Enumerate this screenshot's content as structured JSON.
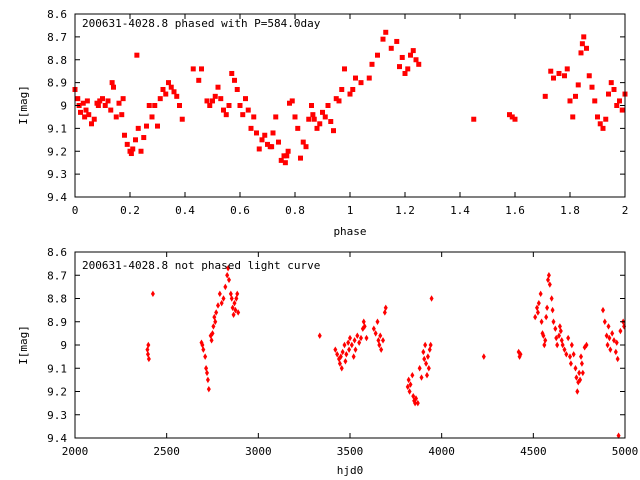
{
  "chart_data": [
    {
      "type": "scatter",
      "title": "200631-4028.8 phased with P=584.0day",
      "xlabel": "phase",
      "ylabel": "I[mag]",
      "xlim": [
        0,
        2
      ],
      "ylim": [
        9.4,
        8.6
      ],
      "y_inverted": true,
      "grid": false,
      "marker": "square",
      "color": "#ff0000",
      "xticks": [
        0,
        0.2,
        0.4,
        0.6,
        0.8,
        1,
        1.2,
        1.4,
        1.6,
        1.8,
        2
      ],
      "xtick_labels": [
        "0",
        "0.2",
        "0.4",
        "0.6",
        "0.8",
        "1",
        "1.2",
        "1.4",
        "1.6",
        "1.8",
        "2"
      ],
      "yticks": [
        8.6,
        8.7,
        8.8,
        8.9,
        9.0,
        9.1,
        9.2,
        9.3,
        9.4
      ],
      "ytick_labels": [
        "8.6",
        "8.7",
        "8.8",
        "8.9",
        "9",
        "9.1",
        "9.2",
        "9.3",
        "9.4"
      ],
      "points": [
        [
          0.0,
          8.93
        ],
        [
          0.01,
          8.97
        ],
        [
          0.015,
          9.0
        ],
        [
          0.02,
          9.03
        ],
        [
          0.03,
          8.99
        ],
        [
          0.035,
          9.05
        ],
        [
          0.04,
          9.02
        ],
        [
          0.045,
          8.98
        ],
        [
          0.05,
          9.04
        ],
        [
          0.06,
          9.08
        ],
        [
          0.07,
          9.06
        ],
        [
          0.08,
          8.99
        ],
        [
          0.085,
          9.0
        ],
        [
          0.09,
          8.98
        ],
        [
          0.1,
          8.97
        ],
        [
          0.11,
          9.0
        ],
        [
          0.12,
          8.98
        ],
        [
          0.13,
          9.02
        ],
        [
          0.135,
          8.9
        ],
        [
          0.14,
          8.92
        ],
        [
          0.15,
          9.05
        ],
        [
          0.16,
          8.99
        ],
        [
          0.17,
          9.04
        ],
        [
          0.175,
          8.97
        ],
        [
          0.18,
          9.13
        ],
        [
          0.19,
          9.17
        ],
        [
          0.2,
          9.2
        ],
        [
          0.205,
          9.21
        ],
        [
          0.21,
          9.19
        ],
        [
          0.22,
          9.15
        ],
        [
          0.225,
          8.78
        ],
        [
          0.23,
          9.1
        ],
        [
          0.24,
          9.2
        ],
        [
          0.25,
          9.14
        ],
        [
          0.26,
          9.09
        ],
        [
          0.27,
          9.0
        ],
        [
          0.28,
          9.05
        ],
        [
          0.29,
          9.0
        ],
        [
          0.3,
          9.09
        ],
        [
          0.31,
          8.97
        ],
        [
          0.32,
          8.93
        ],
        [
          0.33,
          8.95
        ],
        [
          0.34,
          8.9
        ],
        [
          0.35,
          8.92
        ],
        [
          0.36,
          8.94
        ],
        [
          0.37,
          8.96
        ],
        [
          0.38,
          9.0
        ],
        [
          0.39,
          9.06
        ],
        [
          0.43,
          8.84
        ],
        [
          0.45,
          8.89
        ],
        [
          0.46,
          8.84
        ],
        [
          0.48,
          8.98
        ],
        [
          0.49,
          9.0
        ],
        [
          0.5,
          8.98
        ],
        [
          0.51,
          8.96
        ],
        [
          0.52,
          8.92
        ],
        [
          0.53,
          8.97
        ],
        [
          0.54,
          9.02
        ],
        [
          0.55,
          9.04
        ],
        [
          0.56,
          9.0
        ],
        [
          0.57,
          8.86
        ],
        [
          0.58,
          8.89
        ],
        [
          0.59,
          8.93
        ],
        [
          0.6,
          9.0
        ],
        [
          0.61,
          9.04
        ],
        [
          0.62,
          8.97
        ],
        [
          0.63,
          9.02
        ],
        [
          0.64,
          9.1
        ],
        [
          0.65,
          9.05
        ],
        [
          0.66,
          9.12
        ],
        [
          0.67,
          9.19
        ],
        [
          0.68,
          9.15
        ],
        [
          0.69,
          9.13
        ],
        [
          0.7,
          9.17
        ],
        [
          0.71,
          9.18
        ],
        [
          0.715,
          9.18
        ],
        [
          0.72,
          9.12
        ],
        [
          0.73,
          9.05
        ],
        [
          0.74,
          9.16
        ],
        [
          0.75,
          9.24
        ],
        [
          0.76,
          9.22
        ],
        [
          0.765,
          9.25
        ],
        [
          0.77,
          9.22
        ],
        [
          0.775,
          9.2
        ],
        [
          0.78,
          8.99
        ],
        [
          0.79,
          8.98
        ],
        [
          0.8,
          9.05
        ],
        [
          0.81,
          9.1
        ],
        [
          0.82,
          9.23
        ],
        [
          0.83,
          9.16
        ],
        [
          0.84,
          9.18
        ],
        [
          0.85,
          9.06
        ],
        [
          0.86,
          9.0
        ],
        [
          0.865,
          9.04
        ],
        [
          0.87,
          9.06
        ],
        [
          0.88,
          9.1
        ],
        [
          0.89,
          9.08
        ],
        [
          0.9,
          9.03
        ],
        [
          0.91,
          9.05
        ],
        [
          0.92,
          9.0
        ],
        [
          0.93,
          9.07
        ],
        [
          0.94,
          9.11
        ],
        [
          0.95,
          8.97
        ],
        [
          0.96,
          8.98
        ],
        [
          0.97,
          8.93
        ],
        [
          0.98,
          8.84
        ],
        [
          1.0,
          8.95
        ],
        [
          1.01,
          8.93
        ],
        [
          1.02,
          8.88
        ],
        [
          1.04,
          8.9
        ],
        [
          1.07,
          8.88
        ],
        [
          1.08,
          8.82
        ],
        [
          1.1,
          8.78
        ],
        [
          1.12,
          8.71
        ],
        [
          1.13,
          8.68
        ],
        [
          1.15,
          8.75
        ],
        [
          1.17,
          8.72
        ],
        [
          1.18,
          8.83
        ],
        [
          1.19,
          8.79
        ],
        [
          1.2,
          8.86
        ],
        [
          1.21,
          8.84
        ],
        [
          1.22,
          8.78
        ],
        [
          1.23,
          8.76
        ],
        [
          1.24,
          8.8
        ],
        [
          1.25,
          8.82
        ],
        [
          1.45,
          9.06
        ],
        [
          1.58,
          9.04
        ],
        [
          1.59,
          9.05
        ],
        [
          1.6,
          9.06
        ],
        [
          1.71,
          8.96
        ],
        [
          1.73,
          8.85
        ],
        [
          1.74,
          8.88
        ],
        [
          1.76,
          8.86
        ],
        [
          1.78,
          8.87
        ],
        [
          1.79,
          8.84
        ],
        [
          1.8,
          8.98
        ],
        [
          1.81,
          9.05
        ],
        [
          1.82,
          8.96
        ],
        [
          1.83,
          8.91
        ],
        [
          1.84,
          8.77
        ],
        [
          1.845,
          8.73
        ],
        [
          1.85,
          8.7
        ],
        [
          1.86,
          8.75
        ],
        [
          1.87,
          8.87
        ],
        [
          1.88,
          8.92
        ],
        [
          1.89,
          8.98
        ],
        [
          1.9,
          9.05
        ],
        [
          1.91,
          9.08
        ],
        [
          1.92,
          9.1
        ],
        [
          1.93,
          9.06
        ],
        [
          1.94,
          8.95
        ],
        [
          1.95,
          8.9
        ],
        [
          1.96,
          8.93
        ],
        [
          1.97,
          9.0
        ],
        [
          1.98,
          8.98
        ],
        [
          1.99,
          9.02
        ],
        [
          2.0,
          8.95
        ]
      ]
    },
    {
      "type": "scatter",
      "title": "200631-4028.8 not phased light curve",
      "xlabel": "hjd0",
      "ylabel": "I[mag]",
      "xlim": [
        2000,
        5000
      ],
      "ylim": [
        9.4,
        8.6
      ],
      "y_inverted": true,
      "grid": false,
      "marker": "diamond",
      "color": "#ff0000",
      "xticks": [
        2000,
        2500,
        3000,
        3500,
        4000,
        4500,
        5000
      ],
      "xtick_labels": [
        "2000",
        "2500",
        "3000",
        "3500",
        "4000",
        "4500",
        "5000"
      ],
      "yticks": [
        8.6,
        8.7,
        8.8,
        8.9,
        9.0,
        9.1,
        9.2,
        9.3,
        9.4
      ],
      "ytick_labels": [
        "8.6",
        "8.7",
        "8.8",
        "8.9",
        "9",
        "9.1",
        "9.2",
        "9.3",
        "9.4"
      ],
      "points": [
        [
          2395,
          9.02
        ],
        [
          2398,
          9.04
        ],
        [
          2400,
          9.0
        ],
        [
          2403,
          9.06
        ],
        [
          2425,
          8.78
        ],
        [
          2690,
          8.99
        ],
        [
          2695,
          9.0
        ],
        [
          2700,
          9.02
        ],
        [
          2710,
          9.05
        ],
        [
          2715,
          9.1
        ],
        [
          2720,
          9.12
        ],
        [
          2725,
          9.15
        ],
        [
          2730,
          9.19
        ],
        [
          2740,
          8.96
        ],
        [
          2745,
          8.98
        ],
        [
          2750,
          8.95
        ],
        [
          2755,
          8.92
        ],
        [
          2760,
          8.88
        ],
        [
          2765,
          8.9
        ],
        [
          2770,
          8.86
        ],
        [
          2780,
          8.83
        ],
        [
          2790,
          8.78
        ],
        [
          2800,
          8.82
        ],
        [
          2810,
          8.8
        ],
        [
          2820,
          8.75
        ],
        [
          2830,
          8.7
        ],
        [
          2835,
          8.67
        ],
        [
          2840,
          8.72
        ],
        [
          2850,
          8.78
        ],
        [
          2855,
          8.8
        ],
        [
          2860,
          8.84
        ],
        [
          2865,
          8.87
        ],
        [
          2870,
          8.82
        ],
        [
          2875,
          8.85
        ],
        [
          2880,
          8.8
        ],
        [
          2885,
          8.78
        ],
        [
          2890,
          8.86
        ],
        [
          3335,
          8.96
        ],
        [
          3420,
          9.02
        ],
        [
          3430,
          9.04
        ],
        [
          3440,
          9.06
        ],
        [
          3445,
          9.08
        ],
        [
          3450,
          9.05
        ],
        [
          3455,
          9.1
        ],
        [
          3460,
          9.03
        ],
        [
          3470,
          9.0
        ],
        [
          3475,
          9.07
        ],
        [
          3480,
          9.04
        ],
        [
          3490,
          8.99
        ],
        [
          3495,
          9.02
        ],
        [
          3500,
          8.97
        ],
        [
          3510,
          9.0
        ],
        [
          3520,
          9.05
        ],
        [
          3525,
          8.98
        ],
        [
          3530,
          9.02
        ],
        [
          3540,
          8.96
        ],
        [
          3550,
          8.99
        ],
        [
          3560,
          8.97
        ],
        [
          3570,
          8.93
        ],
        [
          3575,
          8.9
        ],
        [
          3580,
          8.92
        ],
        [
          3590,
          8.97
        ],
        [
          3630,
          8.93
        ],
        [
          3640,
          8.95
        ],
        [
          3650,
          8.9
        ],
        [
          3655,
          8.98
        ],
        [
          3660,
          9.0
        ],
        [
          3665,
          8.96
        ],
        [
          3670,
          9.02
        ],
        [
          3680,
          8.98
        ],
        [
          3690,
          8.86
        ],
        [
          3695,
          8.84
        ],
        [
          3815,
          9.18
        ],
        [
          3820,
          9.15
        ],
        [
          3825,
          9.2
        ],
        [
          3830,
          9.17
        ],
        [
          3840,
          9.13
        ],
        [
          3845,
          9.22
        ],
        [
          3850,
          9.24
        ],
        [
          3855,
          9.25
        ],
        [
          3860,
          9.23
        ],
        [
          3870,
          9.25
        ],
        [
          3880,
          9.1
        ],
        [
          3890,
          9.14
        ],
        [
          3900,
          9.03
        ],
        [
          3905,
          9.06
        ],
        [
          3910,
          9.0
        ],
        [
          3915,
          9.08
        ],
        [
          3920,
          9.13
        ],
        [
          3925,
          9.05
        ],
        [
          3930,
          9.1
        ],
        [
          3935,
          9.02
        ],
        [
          3940,
          9.0
        ],
        [
          3945,
          8.8
        ],
        [
          4230,
          9.05
        ],
        [
          4420,
          9.03
        ],
        [
          4425,
          9.05
        ],
        [
          4430,
          9.04
        ],
        [
          4510,
          8.88
        ],
        [
          4520,
          8.84
        ],
        [
          4525,
          8.86
        ],
        [
          4530,
          8.82
        ],
        [
          4540,
          8.78
        ],
        [
          4545,
          8.9
        ],
        [
          4550,
          8.95
        ],
        [
          4555,
          8.96
        ],
        [
          4560,
          9.0
        ],
        [
          4565,
          8.98
        ],
        [
          4570,
          8.88
        ],
        [
          4575,
          8.84
        ],
        [
          4580,
          8.72
        ],
        [
          4585,
          8.7
        ],
        [
          4590,
          8.74
        ],
        [
          4600,
          8.8
        ],
        [
          4605,
          8.85
        ],
        [
          4610,
          8.9
        ],
        [
          4620,
          8.93
        ],
        [
          4625,
          8.97
        ],
        [
          4630,
          9.0
        ],
        [
          4640,
          8.96
        ],
        [
          4645,
          8.92
        ],
        [
          4650,
          8.94
        ],
        [
          4655,
          8.98
        ],
        [
          4660,
          9.0
        ],
        [
          4670,
          9.02
        ],
        [
          4680,
          9.04
        ],
        [
          4690,
          8.97
        ],
        [
          4700,
          9.05
        ],
        [
          4705,
          9.08
        ],
        [
          4710,
          9.0
        ],
        [
          4720,
          9.04
        ],
        [
          4730,
          9.1
        ],
        [
          4735,
          9.14
        ],
        [
          4740,
          9.2
        ],
        [
          4745,
          9.16
        ],
        [
          4750,
          9.12
        ],
        [
          4755,
          9.15
        ],
        [
          4760,
          9.05
        ],
        [
          4765,
          9.08
        ],
        [
          4770,
          9.12
        ],
        [
          4780,
          9.01
        ],
        [
          4790,
          9.0
        ],
        [
          4880,
          8.85
        ],
        [
          4890,
          8.9
        ],
        [
          4900,
          8.96
        ],
        [
          4905,
          9.0
        ],
        [
          4910,
          8.92
        ],
        [
          4915,
          8.97
        ],
        [
          4920,
          9.02
        ],
        [
          4930,
          8.95
        ],
        [
          4940,
          8.98
        ],
        [
          4950,
          9.03
        ],
        [
          4955,
          8.99
        ],
        [
          4960,
          9.06
        ],
        [
          4965,
          9.39
        ],
        [
          4975,
          8.94
        ],
        [
          4990,
          8.9
        ],
        [
          4995,
          8.92
        ]
      ]
    }
  ]
}
